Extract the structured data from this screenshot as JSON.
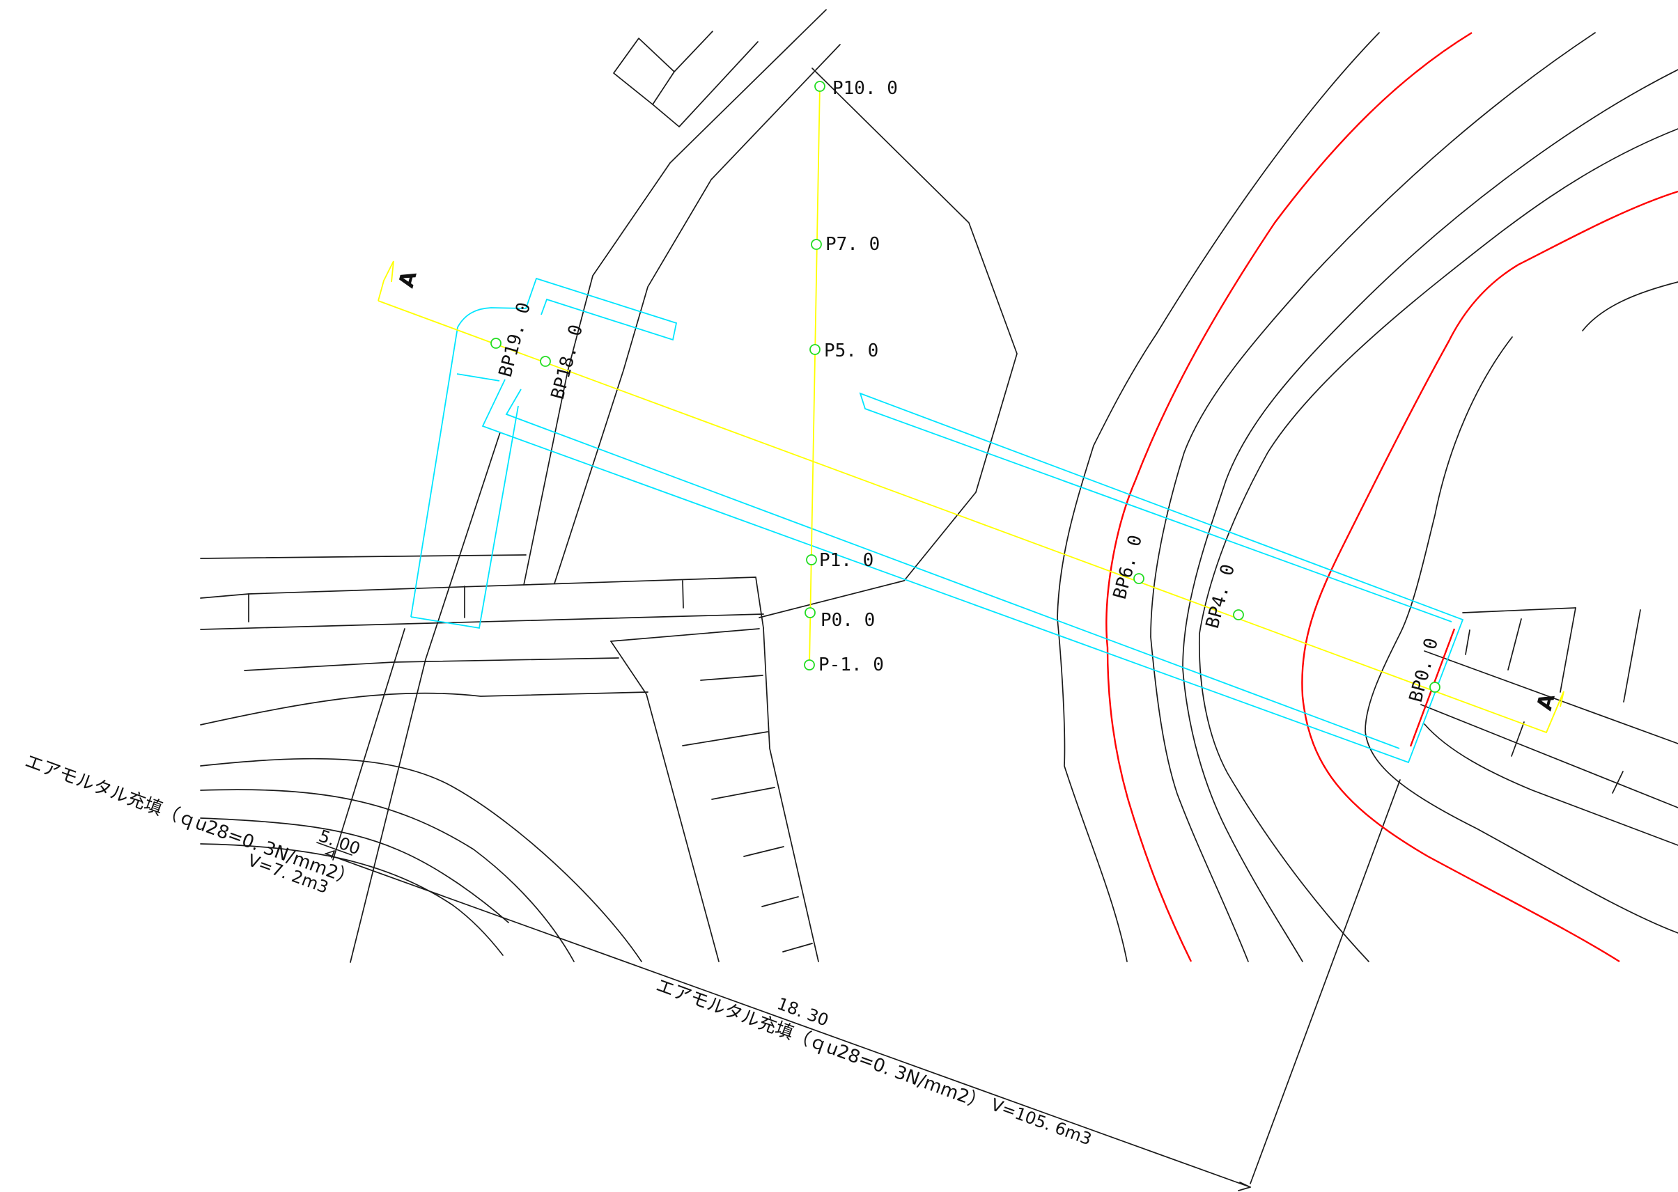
{
  "section_marker": "A",
  "center_points": [
    {
      "label": "P10. 0"
    },
    {
      "label": "P7. 0"
    },
    {
      "label": "P5. 0"
    },
    {
      "label": "P1. 0"
    },
    {
      "label": "P0. 0"
    },
    {
      "label": "P-1. 0"
    }
  ],
  "branch_points": [
    {
      "label": "BP19. 0"
    },
    {
      "label": "BP18. 0"
    },
    {
      "label": "BP6. 0"
    },
    {
      "label": "BP4. 0"
    },
    {
      "label": "BP0. 0"
    }
  ],
  "annotations": {
    "small_fill": {
      "dimension": "5. 00",
      "material": "エアモルタル充填（ｑu28=0. 3N/mm2）",
      "volume": "V=7. 2m3"
    },
    "large_fill": {
      "dimension": "18. 30",
      "material": "エアモルタル充填（ｑu28=0. 3N/mm2）",
      "volume": "V=105. 6m3"
    }
  },
  "colors": {
    "linework": "#1a1a1a",
    "contour_highlight": "#ff0000",
    "structure_outline": "#00e5ff",
    "centerline": "#ffff00",
    "survey_point": "#22dd22"
  }
}
